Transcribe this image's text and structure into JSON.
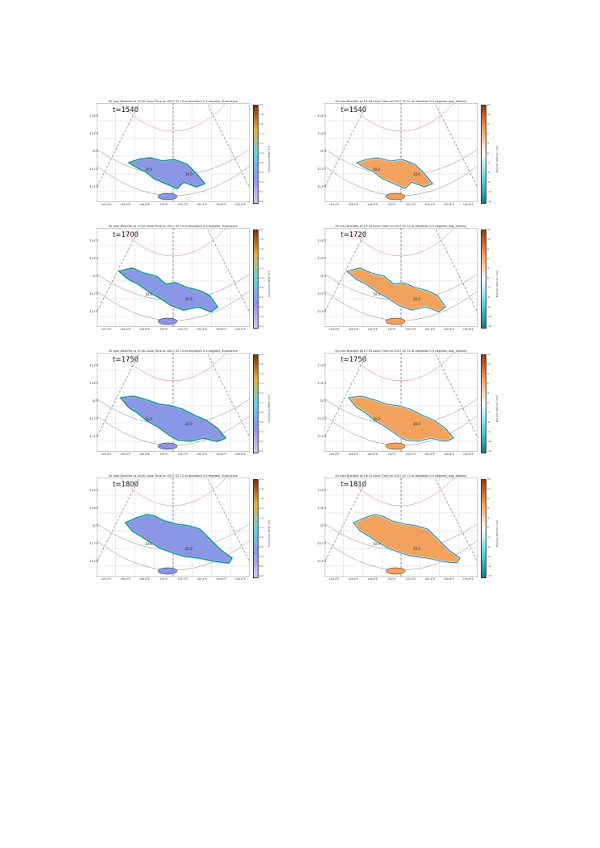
{
  "turb_ticks": [
    "2.0",
    "1.8",
    "1.6",
    "1.4",
    "1.2",
    "1.0",
    "0.8",
    "0.6",
    "0.4",
    "0.2",
    "0.0"
  ],
  "vel_ticks": [
    "15",
    "12",
    "9",
    "6",
    "3",
    "0",
    "-3",
    "-6",
    "-9",
    "-12",
    "-15"
  ],
  "turb_cbar_label": "Turbulence (EDR^1/3)",
  "vel_cbar_label": "Doppler Velocity (m/s)",
  "lat_labels": [
    "31.6°S",
    "31.8°S",
    "32°S",
    "32.2°S",
    "32.4°S"
  ],
  "lon_labels": [
    "149.4°E",
    "149.6°E",
    "149.8°E",
    "150°E",
    "150.2°E",
    "150.4°E",
    "150.6°E",
    "150.8°E"
  ],
  "colors": {
    "turb_fill": "#8c96e6",
    "turb_edge": "#5fd6e0",
    "vel_fill": "#f2a25c",
    "vel_cold": "#b8ecf0"
  },
  "panels": [
    {
      "title": "Sir Ivan Bushfire at 15:40 Local Time on 2017 02 12 at elevation 0.5 degrees, Turbulence",
      "t_label": "t=1540",
      "contour_labels": [
        "10.0",
        "10.0"
      ]
    },
    {
      "title": "Sir Ivan Bushfire at 15:40 Local Time on 2017 02 12 at elevation 0.5 degrees, dop_Velocity",
      "t_label": "t=1540",
      "contour_labels": [
        "10.0",
        "10.0"
      ]
    },
    {
      "title": "Sir Ivan Bushfire at 17:00 Local Time on 2017 02 12 at elevation 0.5 degrees, Turbulence",
      "t_label": "t=1700",
      "contour_labels": [
        "10.0",
        "20.0"
      ]
    },
    {
      "title": "Sir Ivan Bushfire at 17:20 Local Time on 2017 02 12 at elevation 0.5 degrees, dop_Velocity",
      "t_label": "t=1720",
      "contour_labels": [
        "10.0",
        "20.0"
      ]
    },
    {
      "title": "Sir Ivan Bushfire at 17:50 Local Time on 2017 02 12 at elevation 0.5 degrees, Turbulence",
      "t_label": "t=1750",
      "contour_labels": [
        "10.0",
        "20.0"
      ]
    },
    {
      "title": "Sir Ivan Bushfire at 17:50 Local Time on 2017 02 12 at elevation 0.5 degrees, dop_Velocity",
      "t_label": "t=1750",
      "contour_labels": [
        "10.0",
        "20.0"
      ]
    },
    {
      "title": "Sir Ivan Bushfire at 18:00 Local Time on 2017 02 12 at elevation 0.5 degrees, Turbulence",
      "t_label": "t=1800",
      "contour_labels": [
        "10.0",
        "20.0"
      ]
    },
    {
      "title": "Sir Ivan Bushfire at 18:10 Local Time on 2017 02 12 at elevation 0.5 degrees, dop_Velocity",
      "t_label": "t=1810",
      "contour_labels": [
        "10.0",
        "20.0"
      ]
    }
  ]
}
